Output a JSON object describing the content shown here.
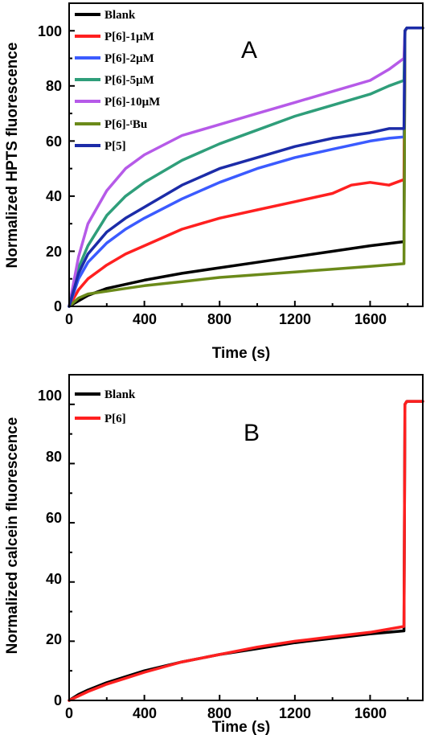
{
  "chart_data": [
    {
      "type": "line",
      "panel_label": "A",
      "xlabel": "Time (s)",
      "ylabel": "Normalized HPTS fluorescence",
      "xlim": [
        0,
        1880
      ],
      "ylim": [
        0,
        110
      ],
      "xticks": [
        "0",
        "400",
        "800",
        "1200",
        "1600"
      ],
      "yticks": [
        "0",
        "20",
        "40",
        "60",
        "80",
        "100"
      ],
      "legend_position": "top-left",
      "series": [
        {
          "name": "Blank",
          "color": "#000000",
          "x": [
            0,
            50,
            100,
            200,
            300,
            400,
            600,
            800,
            1000,
            1200,
            1400,
            1600,
            1780,
            1785,
            1795,
            1880
          ],
          "y": [
            0,
            2,
            4,
            6.5,
            8,
            9.5,
            12,
            14,
            16,
            18,
            20,
            22,
            23.5,
            100,
            101,
            101
          ]
        },
        {
          "name": "P[6]-1μM",
          "color": "#ff2020",
          "x": [
            0,
            50,
            100,
            200,
            300,
            400,
            600,
            800,
            1000,
            1200,
            1400,
            1500,
            1600,
            1700,
            1780,
            1785,
            1795,
            1880
          ],
          "y": [
            0,
            6,
            10,
            15,
            19,
            22,
            28,
            32,
            35,
            38,
            41,
            44,
            45,
            44,
            46,
            100,
            101,
            101
          ]
        },
        {
          "name": "P[6]-2μM",
          "color": "#3b5bff",
          "x": [
            0,
            50,
            100,
            200,
            300,
            400,
            600,
            800,
            1000,
            1200,
            1400,
            1600,
            1700,
            1780,
            1785,
            1795,
            1880
          ],
          "y": [
            0,
            10,
            16,
            23,
            28,
            32,
            39,
            45,
            50,
            54,
            57,
            60,
            61,
            61.5,
            100,
            101,
            101
          ]
        },
        {
          "name": "P[6]-5μM",
          "color": "#2f9e7a",
          "x": [
            0,
            50,
            100,
            200,
            300,
            400,
            600,
            800,
            1000,
            1200,
            1400,
            1600,
            1700,
            1780,
            1785,
            1795,
            1880
          ],
          "y": [
            0,
            14,
            22,
            33,
            40,
            45,
            53,
            59,
            64,
            69,
            73,
            77,
            80,
            82,
            100,
            101,
            101
          ]
        },
        {
          "name": "P[6]-10μM",
          "color": "#b65ae8",
          "x": [
            0,
            50,
            100,
            200,
            300,
            400,
            600,
            800,
            1000,
            1200,
            1400,
            1600,
            1700,
            1780,
            1785,
            1795,
            1880
          ],
          "y": [
            0,
            18,
            30,
            42,
            50,
            55,
            62,
            66,
            70,
            74,
            78,
            82,
            86,
            90,
            100,
            101,
            101
          ]
        },
        {
          "name": "P[6]-ᵗBu",
          "color": "#6b8a1a",
          "x": [
            0,
            50,
            100,
            200,
            300,
            400,
            600,
            800,
            1000,
            1200,
            1400,
            1600,
            1780,
            1785,
            1795,
            1880
          ],
          "y": [
            0,
            3,
            4.5,
            5.5,
            6.5,
            7.5,
            9,
            10.5,
            11.5,
            12.5,
            13.5,
            14.5,
            15.5,
            100,
            101,
            101
          ]
        },
        {
          "name": "P[5]",
          "color": "#1c2ca8",
          "x": [
            0,
            50,
            100,
            200,
            300,
            400,
            600,
            800,
            1000,
            1200,
            1400,
            1600,
            1700,
            1780,
            1785,
            1795,
            1880
          ],
          "y": [
            0,
            12,
            19,
            27,
            32,
            36,
            44,
            50,
            54,
            58,
            61,
            63,
            64.5,
            64.5,
            100,
            101,
            101
          ]
        }
      ]
    },
    {
      "type": "line",
      "panel_label": "B",
      "xlabel": "Time (s)",
      "ylabel": "Normalized calcein fluorescence",
      "xlim": [
        0,
        1880
      ],
      "ylim": [
        0,
        110
      ],
      "xticks": [
        "0",
        "400",
        "800",
        "1200",
        "1600"
      ],
      "yticks": [
        "0",
        "20",
        "40",
        "60",
        "80",
        "100"
      ],
      "legend_position": "top-left",
      "series": [
        {
          "name": "Blank",
          "color": "#000000",
          "x": [
            0,
            50,
            100,
            200,
            300,
            400,
            600,
            800,
            1000,
            1200,
            1400,
            1600,
            1780,
            1785,
            1795,
            1880
          ],
          "y": [
            0,
            2,
            3.5,
            6,
            8,
            10,
            13,
            15.5,
            17.5,
            19.5,
            21,
            22.5,
            23.5,
            100,
            101,
            101
          ]
        },
        {
          "name": "P[6]",
          "color": "#ff2020",
          "x": [
            0,
            50,
            100,
            200,
            300,
            400,
            600,
            800,
            1000,
            1200,
            1400,
            1600,
            1780,
            1785,
            1795,
            1880
          ],
          "y": [
            0,
            1.5,
            3,
            5.5,
            7.5,
            9.5,
            13,
            15.5,
            18,
            20,
            21.5,
            23,
            25,
            100,
            101,
            101
          ]
        }
      ]
    }
  ]
}
